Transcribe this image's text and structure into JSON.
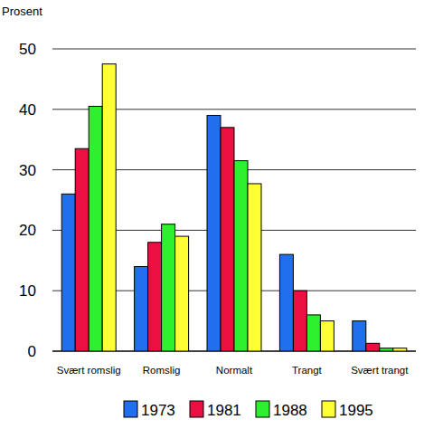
{
  "chart_data": {
    "type": "bar",
    "y_label": "Prosent",
    "categories": [
      "Svært romslig",
      "Romslig",
      "Normalt",
      "Trangt",
      "Svært trangt"
    ],
    "series": [
      {
        "name": "1973",
        "color": "#1f6fef",
        "values": [
          26,
          14,
          39,
          16,
          5
        ]
      },
      {
        "name": "1981",
        "color": "#ec0f41",
        "values": [
          33.5,
          18,
          37,
          10,
          1.3
        ]
      },
      {
        "name": "1988",
        "color": "#2ef02e",
        "values": [
          40.5,
          21,
          31.5,
          6,
          0.5
        ]
      },
      {
        "name": "1995",
        "color": "#ffff33",
        "values": [
          47.5,
          19,
          27.7,
          5,
          0.5
        ]
      }
    ],
    "ylim": [
      0,
      50
    ],
    "yticks": [
      0,
      10,
      20,
      30,
      40,
      50
    ],
    "grid": true,
    "legend": "bottom"
  }
}
